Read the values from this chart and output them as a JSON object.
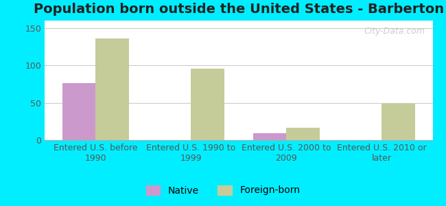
{
  "title": "Population born outside the United States - Barberton",
  "categories": [
    "Entered U.S. before\n1990",
    "Entered U.S. 1990 to\n1999",
    "Entered U.S. 2000 to\n2009",
    "Entered U.S. 2010 or\nlater"
  ],
  "native_values": [
    76,
    0,
    9,
    0
  ],
  "foreign_born_values": [
    136,
    96,
    17,
    49
  ],
  "native_color": "#cc99cc",
  "foreign_born_color": "#c5cc99",
  "background_color": "#ffffff",
  "outer_background": "#00eeff",
  "ylim": [
    0,
    160
  ],
  "yticks": [
    0,
    50,
    100,
    150
  ],
  "bar_width": 0.35,
  "watermark": "City-Data.com",
  "legend_native": "Native",
  "legend_foreign": "Foreign-born",
  "title_fontsize": 14,
  "tick_fontsize": 9,
  "legend_fontsize": 10
}
